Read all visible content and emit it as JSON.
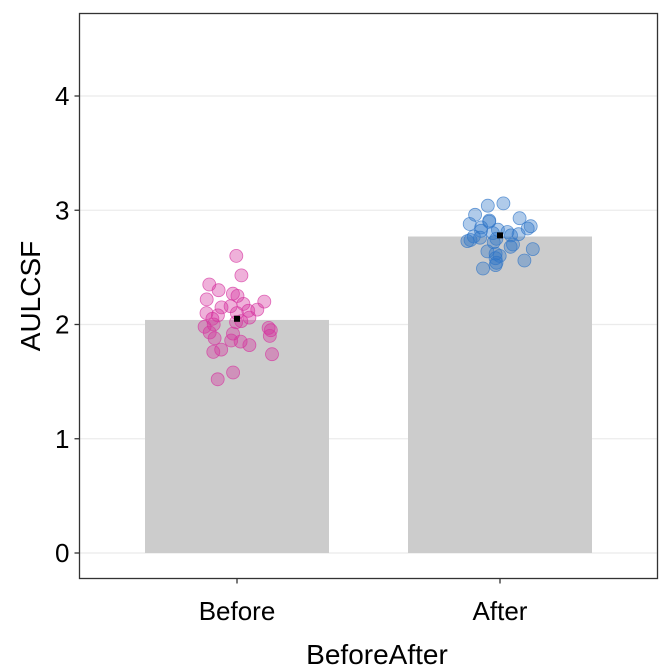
{
  "chart_data": {
    "type": "bar",
    "title": "",
    "xlabel": "BeforeAfter",
    "ylabel": "AULCSF",
    "categories": [
      "Before",
      "After"
    ],
    "values": [
      2.04,
      2.77
    ],
    "ylim": [
      -0.22,
      4.72
    ],
    "yticks": [
      0,
      1,
      2,
      3,
      4
    ],
    "grid": "horizontal major",
    "legend": "none",
    "bar_color": "#cccccc",
    "mean_marker_color": "#000000",
    "means": [
      2.05,
      2.78
    ],
    "series": [
      {
        "name": "Before",
        "color": "#d6339f",
        "points": [
          2.6,
          2.43,
          2.35,
          2.3,
          2.27,
          2.25,
          2.22,
          2.2,
          2.18,
          2.16,
          2.15,
          2.13,
          2.12,
          2.1,
          2.1,
          2.08,
          2.06,
          2.05,
          2.03,
          2.02,
          2.0,
          1.98,
          1.97,
          1.95,
          1.93,
          1.92,
          1.9,
          1.88,
          1.86,
          1.85,
          1.82,
          1.78,
          1.76,
          1.74,
          1.58,
          1.52
        ]
      },
      {
        "name": "After",
        "color": "#2f75c8",
        "points": [
          3.06,
          3.04,
          2.96,
          2.93,
          2.91,
          2.9,
          2.88,
          2.86,
          2.85,
          2.84,
          2.83,
          2.82,
          2.81,
          2.8,
          2.79,
          2.78,
          2.77,
          2.76,
          2.75,
          2.74,
          2.73,
          2.72,
          2.7,
          2.68,
          2.66,
          2.64,
          2.62,
          2.6,
          2.58,
          2.56,
          2.54,
          2.52,
          2.49
        ]
      }
    ]
  },
  "axis": {
    "y_title": "AULCSF",
    "x_title": "BeforeAfter",
    "y_ticks": [
      "0",
      "1",
      "2",
      "3",
      "4"
    ],
    "x_ticks": [
      "Before",
      "After"
    ]
  }
}
